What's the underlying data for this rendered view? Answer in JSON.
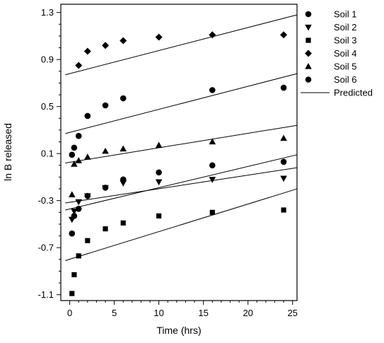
{
  "chart_data": {
    "type": "scatter",
    "xlabel": "Time (hrs)",
    "ylabel": "ln B released",
    "xlim": [
      -1,
      25.5
    ],
    "ylim": [
      -1.15,
      1.37
    ],
    "x_ticks": [
      0,
      5,
      10,
      15,
      20,
      25
    ],
    "y_ticks": [
      -1.1,
      -0.7,
      -0.3,
      0.1,
      0.5,
      0.9,
      1.3
    ],
    "legend_position": "top-right",
    "legend": [
      {
        "label": "Soil 1",
        "marker": "circle"
      },
      {
        "label": "Soil 2",
        "marker": "triangle-down"
      },
      {
        "label": "Soil 3",
        "marker": "square"
      },
      {
        "label": "Soil 4",
        "marker": "diamond"
      },
      {
        "label": "Soil 5",
        "marker": "triangle-up"
      },
      {
        "label": "Soil 6",
        "marker": "circle"
      },
      {
        "label": "Predicted",
        "marker": "line"
      }
    ],
    "series": [
      {
        "marker": "circle",
        "points": [
          [
            0.25,
            -0.58
          ],
          [
            0.5,
            -0.43
          ],
          [
            1,
            -0.37
          ],
          [
            2,
            -0.26
          ],
          [
            4,
            -0.19
          ],
          [
            6,
            -0.12
          ],
          [
            10,
            -0.06
          ],
          [
            16,
            0.0
          ],
          [
            24,
            0.03
          ]
        ]
      },
      {
        "marker": "triangle-down",
        "points": [
          [
            0.25,
            -0.46
          ],
          [
            0.5,
            -0.39
          ],
          [
            1,
            -0.31
          ],
          [
            2,
            -0.26
          ],
          [
            4,
            -0.19
          ],
          [
            6,
            -0.15
          ],
          [
            10,
            -0.14
          ],
          [
            16,
            -0.12
          ],
          [
            24,
            -0.11
          ]
        ]
      },
      {
        "marker": "square",
        "points": [
          [
            0.25,
            -1.09
          ],
          [
            0.5,
            -0.93
          ],
          [
            1,
            -0.77
          ],
          [
            2,
            -0.64
          ],
          [
            4,
            -0.54
          ],
          [
            6,
            -0.49
          ],
          [
            10,
            -0.43
          ],
          [
            16,
            -0.4
          ],
          [
            24,
            -0.38
          ]
        ]
      },
      {
        "marker": "diamond",
        "points": [
          [
            1,
            0.85
          ],
          [
            2,
            0.97
          ],
          [
            4,
            1.02
          ],
          [
            6,
            1.06
          ],
          [
            10,
            1.09
          ],
          [
            16,
            1.11
          ],
          [
            24,
            1.11
          ]
        ]
      },
      {
        "marker": "triangle-up",
        "points": [
          [
            0.25,
            -0.25
          ],
          [
            0.5,
            0.01
          ],
          [
            1,
            0.04
          ],
          [
            2,
            0.07
          ],
          [
            4,
            0.12
          ],
          [
            6,
            0.14
          ],
          [
            10,
            0.17
          ],
          [
            16,
            0.2
          ],
          [
            24,
            0.23
          ]
        ]
      },
      {
        "marker": "circle",
        "points": [
          [
            0.25,
            0.09
          ],
          [
            0.5,
            0.15
          ],
          [
            1,
            0.25
          ],
          [
            2,
            0.42
          ],
          [
            4,
            0.51
          ],
          [
            6,
            0.57
          ],
          [
            16,
            0.64
          ],
          [
            24,
            0.66
          ]
        ]
      }
    ],
    "predicted_lines": [
      {
        "x": [
          -0.5,
          25.5
        ],
        "y": [
          0.77,
          1.28
        ]
      },
      {
        "x": [
          -0.5,
          25.5
        ],
        "y": [
          0.27,
          0.78
        ]
      },
      {
        "x": [
          -0.5,
          25.5
        ],
        "y": [
          0.02,
          0.34
        ]
      },
      {
        "x": [
          -0.5,
          25.5
        ],
        "y": [
          -0.38,
          0.09
        ]
      },
      {
        "x": [
          -0.5,
          25.5
        ],
        "y": [
          -0.32,
          -0.02
        ]
      },
      {
        "x": [
          -0.5,
          25.5
        ],
        "y": [
          -0.81,
          -0.2
        ]
      }
    ]
  }
}
